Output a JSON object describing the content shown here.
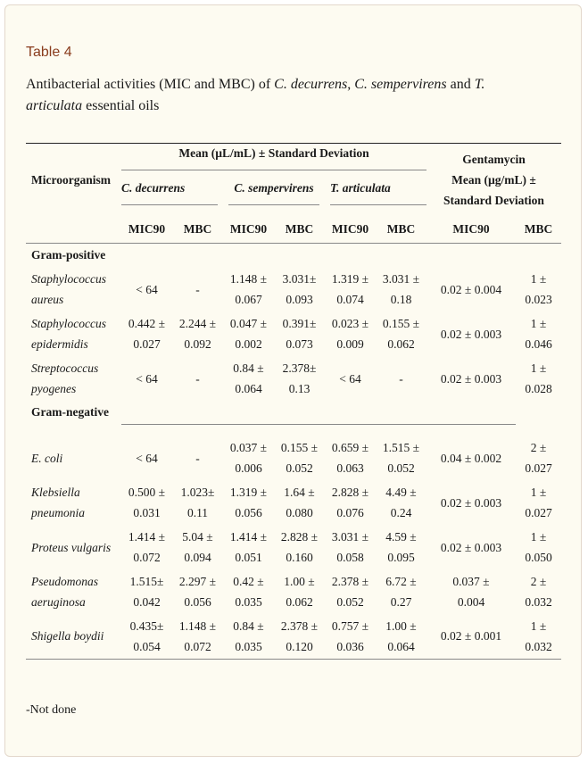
{
  "table_label": "Table 4",
  "caption": {
    "prefix": "Antibacterial activities (MIC and MBC) of ",
    "sp1": "C. decurrens",
    "sep1": ", ",
    "sp2": "C. sempervirens",
    "sep2": " and ",
    "sp3": "T. articulata",
    "suffix": " essential oils"
  },
  "header": {
    "group_title": "Mean (µL/mL) ± Standard Deviation",
    "microorganism": "Microorganism",
    "oils": [
      "C. decurrens",
      "C. sempervirens",
      "T. articulata"
    ],
    "gentamycin_line1": "Gentamycin",
    "gentamycin_line2": "Mean (µg/mL) ±",
    "gentamycin_line3": "Standard Deviation",
    "mic": "MIC90",
    "mbc": "MBC"
  },
  "sections": {
    "gram_positive": "Gram-positive",
    "gram_negative": "Gram-negative"
  },
  "rows_positive": [
    {
      "name1": "Staphylococcus",
      "name2": "aureus",
      "c": [
        [
          "< 64",
          ""
        ],
        [
          "-",
          ""
        ],
        [
          "1.148 ±",
          "0.067"
        ],
        [
          "3.031±",
          "0.093"
        ],
        [
          "1.319 ±",
          "0.074"
        ],
        [
          "3.031 ±",
          "0.18"
        ],
        [
          "0.02 ± 0.004",
          ""
        ],
        [
          "1 ±",
          "0.023"
        ]
      ]
    },
    {
      "name1": "Staphylococcus",
      "name2": "epidermidis",
      "c": [
        [
          "0.442 ±",
          "0.027"
        ],
        [
          "2.244 ±",
          "0.092"
        ],
        [
          "0.047 ±",
          "0.002"
        ],
        [
          "0.391±",
          "0.073"
        ],
        [
          "0.023 ±",
          "0.009"
        ],
        [
          "0.155 ±",
          "0.062"
        ],
        [
          "0.02 ± 0.003",
          ""
        ],
        [
          "1 ±",
          "0.046"
        ]
      ]
    },
    {
      "name1": "Streptococcus",
      "name2": "pyogenes",
      "c": [
        [
          "< 64",
          ""
        ],
        [
          "-",
          ""
        ],
        [
          "0.84 ±",
          "0.064"
        ],
        [
          "2.378±",
          "0.13"
        ],
        [
          "< 64",
          ""
        ],
        [
          "-",
          ""
        ],
        [
          "0.02 ± 0.003",
          ""
        ],
        [
          "1 ±",
          "0.028"
        ]
      ]
    }
  ],
  "rows_negative": [
    {
      "name1": "E. coli",
      "name2": "",
      "c": [
        [
          "< 64",
          ""
        ],
        [
          "-",
          ""
        ],
        [
          "0.037 ±",
          "0.006"
        ],
        [
          "0.155 ±",
          "0.052"
        ],
        [
          "0.659 ±",
          "0.063"
        ],
        [
          "1.515 ±",
          "0.052"
        ],
        [
          "0.04 ± 0.002",
          ""
        ],
        [
          "2 ±",
          "0.027"
        ]
      ]
    },
    {
      "name1": "Klebsiella",
      "name2": "pneumonia",
      "c": [
        [
          "0.500 ±",
          "0.031"
        ],
        [
          "1.023±",
          "0.11"
        ],
        [
          "1.319 ±",
          "0.056"
        ],
        [
          "1.64 ±",
          "0.080"
        ],
        [
          "2.828 ±",
          "0.076"
        ],
        [
          "4.49 ±",
          "0.24"
        ],
        [
          "0.02 ± 0.003",
          ""
        ],
        [
          "1 ±",
          "0.027"
        ]
      ]
    },
    {
      "name1": "Proteus vulgaris",
      "name2": "",
      "c": [
        [
          "1.414 ±",
          "0.072"
        ],
        [
          "5.04 ±",
          "0.094"
        ],
        [
          "1.414 ±",
          "0.051"
        ],
        [
          "2.828 ±",
          "0.160"
        ],
        [
          "3.031 ±",
          "0.058"
        ],
        [
          "4.59 ±",
          "0.095"
        ],
        [
          "0.02 ± 0.003",
          ""
        ],
        [
          "1 ±",
          "0.050"
        ]
      ]
    },
    {
      "name1": "Pseudomonas",
      "name2": "aeruginosa",
      "c": [
        [
          "1.515±",
          "0.042"
        ],
        [
          "2.297 ±",
          "0.056"
        ],
        [
          "0.42 ±",
          "0.035"
        ],
        [
          "1.00 ±",
          "0.062"
        ],
        [
          "2.378 ±",
          "0.052"
        ],
        [
          "6.72 ±",
          "0.27"
        ],
        [
          "0.037 ±",
          "0.004"
        ],
        [
          "2 ±",
          "0.032"
        ]
      ]
    },
    {
      "name1": "Shigella boydii",
      "name2": "",
      "c": [
        [
          "0.435±",
          "0.054"
        ],
        [
          "1.148 ±",
          "0.072"
        ],
        [
          "0.84 ±",
          "0.035"
        ],
        [
          "2.378 ±",
          "0.120"
        ],
        [
          "0.757 ±",
          "0.036"
        ],
        [
          "1.00 ±",
          "0.064"
        ],
        [
          "0.02 ± 0.001",
          ""
        ],
        [
          "1 ±",
          "0.032"
        ]
      ]
    }
  ],
  "footnote": "-Not done"
}
